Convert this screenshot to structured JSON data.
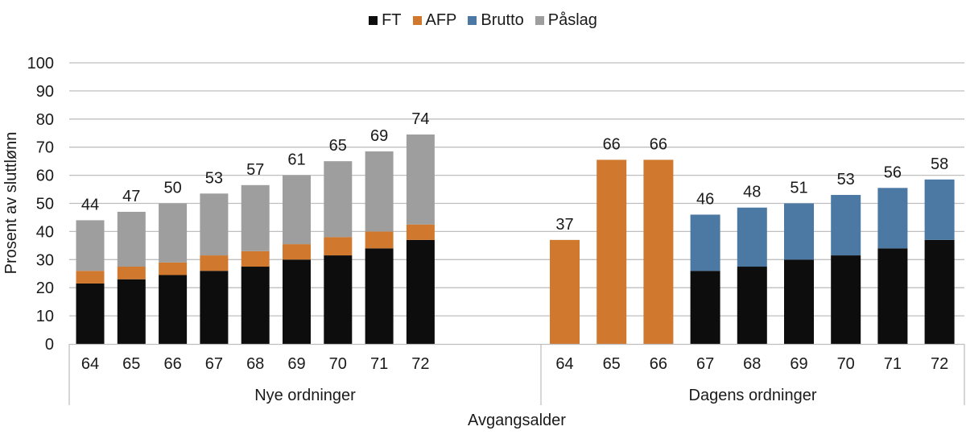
{
  "chart_data": {
    "type": "bar",
    "stacked": true,
    "title": "",
    "xlabel": "Avgangsalder",
    "ylabel": "Prosent av sluttlønn",
    "ylim": [
      0,
      100
    ],
    "yticks": [
      "0",
      "10",
      "20",
      "30",
      "40",
      "50",
      "60",
      "70",
      "80",
      "90",
      "100"
    ],
    "grid": true,
    "legend_position": "top-center",
    "legend": [
      {
        "name": "FT",
        "color": "#0d0d0d"
      },
      {
        "name": "AFP",
        "color": "#d0782e"
      },
      {
        "name": "Brutto",
        "color": "#4c79a3"
      },
      {
        "name": "Påslag",
        "color": "#9e9e9e"
      }
    ],
    "groups": [
      {
        "name": "Nye ordninger",
        "categories": [
          "64",
          "65",
          "66",
          "67",
          "68",
          "69",
          "70",
          "71",
          "72"
        ],
        "series": [
          {
            "name": "FT",
            "values": [
              21.5,
              23,
              24.5,
              26,
              27.5,
              30,
              31.5,
              34,
              37
            ]
          },
          {
            "name": "AFP",
            "values": [
              4.5,
              4.5,
              4.5,
              5.5,
              5.5,
              5.5,
              6.5,
              6,
              5.5
            ]
          },
          {
            "name": "Brutto",
            "values": [
              0,
              0,
              0,
              0,
              0,
              0,
              0,
              0,
              0
            ]
          },
          {
            "name": "Påslag",
            "values": [
              18,
              19.5,
              21,
              22,
              23.5,
              24.5,
              27,
              28.5,
              32
            ]
          }
        ],
        "totals": [
          "44",
          "47",
          "50",
          "53",
          "57",
          "61",
          "65",
          "69",
          "74"
        ]
      },
      {
        "name": "Dagens ordninger",
        "categories": [
          "64",
          "65",
          "66",
          "67",
          "68",
          "69",
          "70",
          "71",
          "72"
        ],
        "series": [
          {
            "name": "FT",
            "values": [
              0,
              0,
              0,
              26,
              27.5,
              30,
              31.5,
              34,
              37
            ]
          },
          {
            "name": "AFP",
            "values": [
              37,
              65.5,
              65.5,
              0,
              0,
              0,
              0,
              0,
              0
            ]
          },
          {
            "name": "Brutto",
            "values": [
              0,
              0,
              0,
              20,
              21,
              20,
              21.5,
              21.5,
              21.5
            ]
          },
          {
            "name": "Påslag",
            "values": [
              0,
              0,
              0,
              0,
              0,
              0,
              0,
              0,
              0
            ]
          }
        ],
        "totals": [
          "37",
          "66",
          "66",
          "46",
          "48",
          "51",
          "53",
          "56",
          "58"
        ]
      }
    ]
  }
}
